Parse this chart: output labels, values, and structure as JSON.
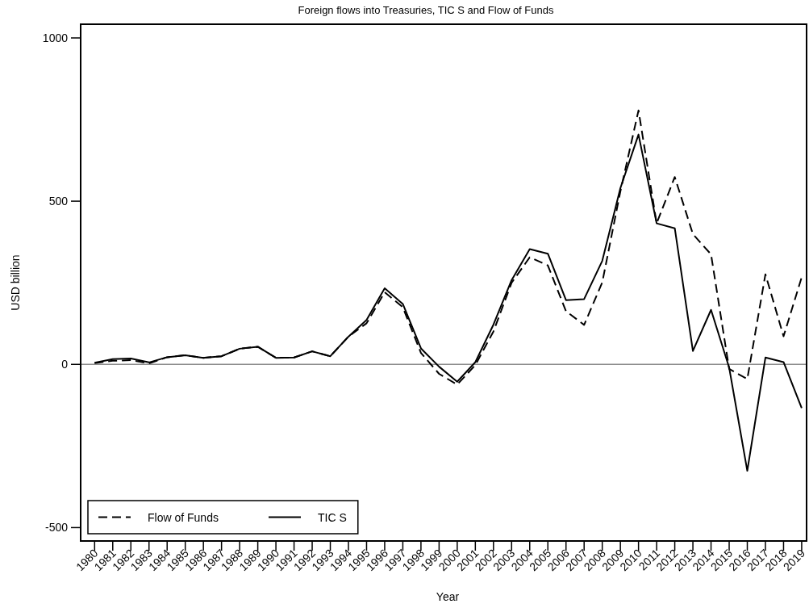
{
  "chart_data": {
    "type": "line",
    "title": "Foreign flows into Treasuries, TIC S and Flow of Funds",
    "xlabel": "Year",
    "ylabel": "USD billion",
    "x": [
      1980,
      1981,
      1982,
      1983,
      1984,
      1985,
      1986,
      1987,
      1988,
      1989,
      1990,
      1991,
      1992,
      1993,
      1994,
      1995,
      1996,
      1997,
      1998,
      1999,
      2000,
      2001,
      2002,
      2003,
      2004,
      2005,
      2006,
      2007,
      2008,
      2009,
      2010,
      2011,
      2012,
      2013,
      2014,
      2015,
      2016,
      2017,
      2018,
      2019
    ],
    "series": [
      {
        "name": "Flow of Funds",
        "color": "#000000",
        "line_style": "dashed",
        "values": [
          4,
          11,
          13,
          3,
          22,
          28,
          20,
          25,
          48,
          54,
          20,
          21,
          40,
          25,
          85,
          126,
          221,
          175,
          35,
          -29,
          -62,
          -2,
          101,
          250,
          328,
          303,
          163,
          121,
          251,
          530,
          778,
          432,
          574,
          399,
          337,
          -14,
          -45,
          276,
          86,
          267
        ]
      },
      {
        "name": "TIC S",
        "color": "#000000",
        "line_style": "solid",
        "values": [
          5,
          16,
          18,
          6,
          22,
          28,
          20,
          25,
          48,
          54,
          20,
          21,
          40,
          25,
          85,
          136,
          233,
          185,
          49,
          -7,
          -53,
          7,
          122,
          258,
          353,
          339,
          197,
          200,
          317,
          540,
          704,
          432,
          417,
          41,
          167,
          -10,
          -326,
          21,
          7,
          -134
        ]
      }
    ],
    "xlim": [
      1979.23,
      2019.27
    ],
    "xticks": [
      1980,
      1981,
      1982,
      1983,
      1984,
      1985,
      1986,
      1987,
      1988,
      1989,
      1990,
      1991,
      1992,
      1993,
      1994,
      1995,
      1996,
      1997,
      1998,
      1999,
      2000,
      2001,
      2002,
      2003,
      2004,
      2005,
      2006,
      2007,
      2008,
      2009,
      2010,
      2011,
      2012,
      2013,
      2014,
      2015,
      2016,
      2017,
      2018,
      2019
    ],
    "ylim": [
      -541,
      1042
    ],
    "yticks": [
      -500,
      0,
      500,
      1000
    ],
    "ref_lines": [
      {
        "axis": "y",
        "value": 0,
        "color": "#8c8c8c"
      }
    ],
    "legend": "bottom left"
  }
}
